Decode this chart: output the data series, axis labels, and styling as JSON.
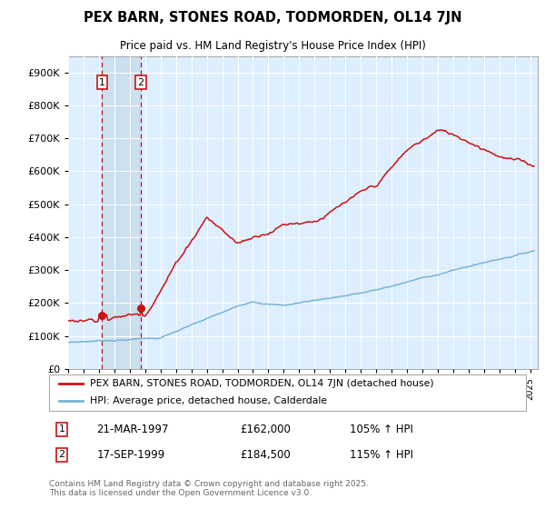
{
  "title": "PEX BARN, STONES ROAD, TODMORDEN, OL14 7JN",
  "subtitle": "Price paid vs. HM Land Registry's House Price Index (HPI)",
  "sale1_label": "21-MAR-1997",
  "sale1_price": 162000,
  "sale1_hpi_pct": "105% ↑ HPI",
  "sale2_label": "17-SEP-1999",
  "sale2_price": 184500,
  "sale2_hpi_pct": "115% ↑ HPI",
  "legend_label1": "PEX BARN, STONES ROAD, TODMORDEN, OL14 7JN (detached house)",
  "legend_label2": "HPI: Average price, detached house, Calderdale",
  "footer": "Contains HM Land Registry data © Crown copyright and database right 2025.\nThis data is licensed under the Open Government Licence v3.0.",
  "hpi_color": "#7ab3d4",
  "price_color": "#cc1111",
  "plot_bg": "#ddeeff",
  "fig_bg": "#ffffff",
  "grid_color": "#ffffff",
  "ylim": [
    0,
    950000
  ],
  "yticks": [
    0,
    100000,
    200000,
    300000,
    400000,
    500000,
    600000,
    700000,
    800000,
    900000
  ],
  "xlim_start": 1995.0,
  "xlim_end": 2025.5,
  "sale1_yr": 1997.21,
  "sale2_yr": 1999.71
}
